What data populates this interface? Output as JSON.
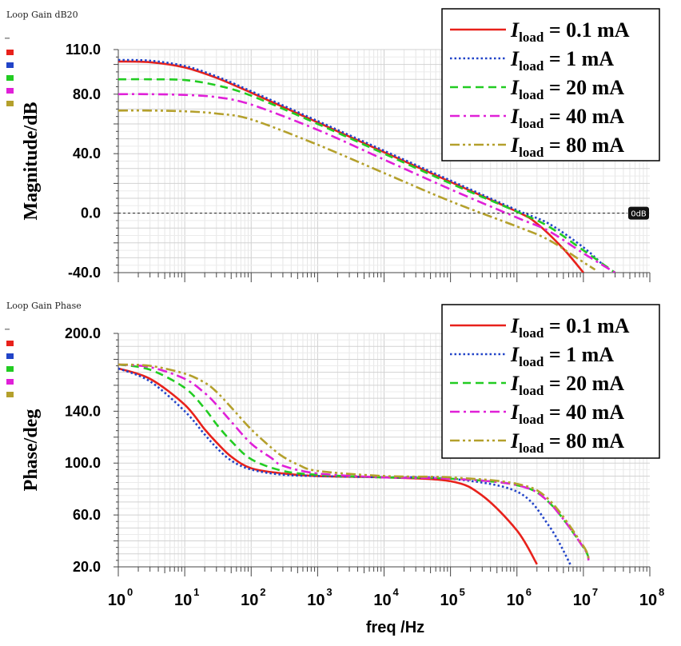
{
  "chart_data": [
    {
      "type": "line",
      "panel_title": "Loop Gain dB20",
      "ylabel": "Magnitude/dB",
      "xscale": "log",
      "xlim": [
        1,
        100000000
      ],
      "ylim": [
        -40,
        110
      ],
      "yticks": [
        "110.0",
        "80.0",
        "40.0",
        "0.0",
        "-40.0"
      ],
      "grid": true,
      "legend_placement": "top-right",
      "marker": {
        "y": 0,
        "label": "0dB"
      },
      "series": [
        {
          "name_prefix": "I",
          "name_sub": "load",
          "name_value": " = 0.1 mA",
          "color": "#e8211b",
          "dash": "solid",
          "x": [
            1,
            3,
            10,
            30,
            100,
            1000,
            10000,
            100000,
            1000000,
            2000000,
            5000000,
            10000000
          ],
          "y": [
            102,
            101.5,
            98,
            91,
            81,
            61,
            41,
            21,
            1,
            -7,
            -24,
            -40
          ]
        },
        {
          "name_prefix": "I",
          "name_sub": "load",
          "name_value": " = 1 mA",
          "color": "#2244c8",
          "dash": "dotted",
          "x": [
            1,
            3,
            10,
            30,
            100,
            1000,
            10000,
            100000,
            1000000,
            3000000,
            10000000,
            20000000
          ],
          "y": [
            103,
            102.5,
            99,
            92,
            82,
            62,
            42,
            22,
            2,
            -7,
            -23,
            -35
          ]
        },
        {
          "name_prefix": "I",
          "name_sub": "load",
          "name_value": " = 20 mA",
          "color": "#22cc22",
          "dash": "dashed",
          "x": [
            1,
            3,
            10,
            30,
            100,
            1000,
            10000,
            100000,
            1000000,
            3000000,
            10000000,
            30000000
          ],
          "y": [
            90,
            90,
            89.5,
            86,
            79,
            60,
            40,
            20,
            1,
            -9,
            -25,
            -40
          ]
        },
        {
          "name_prefix": "I",
          "name_sub": "load",
          "name_value": " = 40 mA",
          "color": "#e020d8",
          "dash": "dashdot",
          "x": [
            1,
            3,
            10,
            30,
            100,
            1000,
            10000,
            100000,
            1000000,
            3000000,
            10000000,
            30000000
          ],
          "y": [
            80,
            80,
            79.5,
            78,
            73,
            56,
            36,
            16,
            -3,
            -12,
            -27,
            -40
          ]
        },
        {
          "name_prefix": "I",
          "name_sub": "load",
          "name_value": " = 80 mA",
          "color": "#b4a02c",
          "dash": "dashdotdot",
          "x": [
            1,
            3,
            10,
            30,
            100,
            1000,
            10000,
            100000,
            1000000,
            3000000,
            10000000,
            15000000
          ],
          "y": [
            69,
            69,
            68.5,
            67,
            63,
            46,
            27,
            8,
            -9,
            -18,
            -33,
            -38
          ]
        }
      ]
    },
    {
      "type": "line",
      "panel_title": "Loop Gain Phase",
      "ylabel": "Phase/deg",
      "xlabel": "freq /Hz",
      "xscale": "log",
      "xlim": [
        1,
        100000000
      ],
      "ylim": [
        20,
        200
      ],
      "yticks": [
        "200.0",
        "140.0",
        "100.0",
        "60.0",
        "20.0"
      ],
      "xticks": [
        {
          "base": "10",
          "exp": "0"
        },
        {
          "base": "10",
          "exp": "1"
        },
        {
          "base": "10",
          "exp": "2"
        },
        {
          "base": "10",
          "exp": "3"
        },
        {
          "base": "10",
          "exp": "4"
        },
        {
          "base": "10",
          "exp": "5"
        },
        {
          "base": "10",
          "exp": "6"
        },
        {
          "base": "10",
          "exp": "7"
        },
        {
          "base": "10",
          "exp": "8"
        }
      ],
      "grid": true,
      "legend_placement": "top-right",
      "series": [
        {
          "name_prefix": "I",
          "name_sub": "load",
          "name_value": " = 0.1 mA",
          "color": "#e8211b",
          "dash": "solid",
          "x": [
            1,
            3,
            10,
            20,
            30,
            50,
            100,
            300,
            1000,
            10000,
            100000,
            300000,
            1000000,
            2000000
          ],
          "y": [
            173,
            165,
            145,
            126,
            116,
            105,
            96,
            92,
            90,
            89,
            86,
            75,
            48,
            22
          ]
        },
        {
          "name_prefix": "I",
          "name_sub": "load",
          "name_value": " = 1 mA",
          "color": "#2244c8",
          "dash": "dotted",
          "x": [
            1,
            3,
            10,
            20,
            30,
            50,
            100,
            300,
            1000,
            10000,
            100000,
            1000000,
            3000000,
            6500000
          ],
          "y": [
            173,
            163,
            140,
            122,
            112,
            102,
            95,
            91,
            90,
            89,
            88,
            78,
            52,
            21
          ]
        },
        {
          "name_prefix": "I",
          "name_sub": "load",
          "name_value": " = 20 mA",
          "color": "#22cc22",
          "dash": "dashed",
          "x": [
            1,
            3,
            10,
            20,
            30,
            50,
            100,
            300,
            1000,
            10000,
            100000,
            1000000,
            3000000,
            10000000,
            12000000
          ],
          "y": [
            176,
            172,
            158,
            142,
            130,
            117,
            103,
            94,
            91,
            89,
            88,
            83,
            70,
            35,
            25
          ]
        },
        {
          "name_prefix": "I",
          "name_sub": "load",
          "name_value": " = 40 mA",
          "color": "#e020d8",
          "dash": "dashdot",
          "x": [
            1,
            3,
            10,
            20,
            30,
            50,
            100,
            200,
            300,
            1000,
            10000,
            100000,
            1000000,
            3000000,
            10000000,
            12000000
          ],
          "y": [
            176,
            174,
            165,
            154,
            145,
            132,
            115,
            104,
            98,
            92,
            89,
            88,
            83,
            70,
            35,
            25
          ]
        },
        {
          "name_prefix": "I",
          "name_sub": "load",
          "name_value": " = 80 mA",
          "color": "#b4a02c",
          "dash": "dashdotdot",
          "x": [
            1,
            3,
            10,
            20,
            30,
            50,
            100,
            200,
            300,
            500,
            1000,
            10000,
            100000,
            1000000,
            3000000,
            10000000,
            12000000
          ],
          "y": [
            176,
            175,
            169,
            162,
            155,
            143,
            126,
            112,
            105,
            99,
            94,
            90,
            89,
            84,
            72,
            36,
            25
          ]
        }
      ]
    }
  ]
}
